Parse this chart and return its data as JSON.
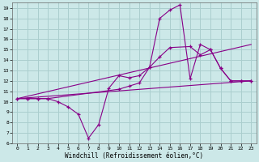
{
  "xlabel": "Windchill (Refroidissement éolien,°C)",
  "background_color": "#cce8e8",
  "line_color": "#880088",
  "grid_color": "#aacece",
  "xlim": [
    -0.5,
    23.5
  ],
  "ylim": [
    6,
    19.5
  ],
  "xticks": [
    0,
    1,
    2,
    3,
    4,
    5,
    6,
    7,
    8,
    9,
    10,
    11,
    12,
    13,
    14,
    15,
    16,
    17,
    18,
    19,
    20,
    21,
    22,
    23
  ],
  "yticks": [
    6,
    7,
    8,
    9,
    10,
    11,
    12,
    13,
    14,
    15,
    16,
    17,
    18,
    19
  ],
  "line1_x": [
    0,
    1,
    2,
    3,
    4,
    5,
    6,
    7,
    8,
    9,
    10,
    11,
    12,
    13,
    14,
    15,
    16,
    17,
    18,
    19,
    20,
    21,
    22,
    23
  ],
  "line1_y": [
    10.3,
    10.3,
    10.3,
    10.3,
    10.0,
    9.5,
    8.8,
    6.5,
    7.8,
    11.3,
    12.5,
    12.3,
    12.5,
    13.3,
    18.0,
    18.8,
    19.3,
    12.2,
    15.5,
    15.0,
    13.2,
    12.0,
    12.0,
    12.0
  ],
  "line2_x": [
    0,
    1,
    2,
    3,
    10,
    11,
    12,
    13,
    14,
    15,
    17,
    18,
    19,
    20,
    21,
    22,
    23
  ],
  "line2_y": [
    10.3,
    10.3,
    10.3,
    10.3,
    11.2,
    11.5,
    11.8,
    13.3,
    14.3,
    15.2,
    15.3,
    14.5,
    15.0,
    13.2,
    12.0,
    12.0,
    12.0
  ],
  "line3_x": [
    0,
    23
  ],
  "line3_y": [
    10.3,
    15.5
  ],
  "line4_x": [
    0,
    23
  ],
  "line4_y": [
    10.3,
    12.0
  ]
}
